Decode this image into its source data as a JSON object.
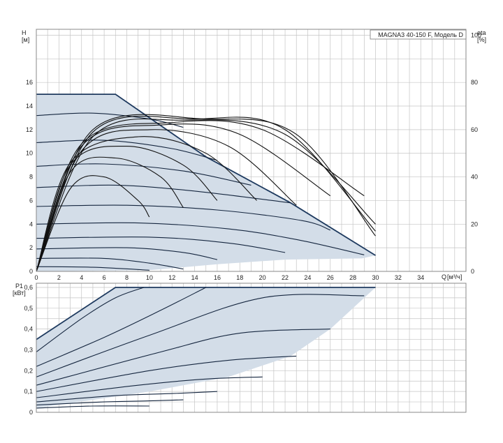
{
  "title": "MAGNA3 40-150 F, Модель D",
  "colors": {
    "area_fill": "#d3dde8",
    "boundary": "#1e3a5f",
    "curve": "#15263f",
    "eta_curve": "#111111",
    "grid": "#c4c4c4",
    "frame": "#888888"
  },
  "chart_data": [
    {
      "type": "line",
      "name": "head",
      "ylabel": "H",
      "yunit": "[м]",
      "y2label": "eta",
      "y2unit": "[%]",
      "xlabel": "Q",
      "xunit": "[м³/ч]",
      "xlim": [
        0,
        38
      ],
      "ylim": [
        0,
        20.5
      ],
      "y2lim": [
        0,
        102.5
      ],
      "x_ticks": [
        0,
        2,
        4,
        6,
        8,
        10,
        12,
        14,
        16,
        18,
        20,
        22,
        24,
        26,
        28,
        30,
        32,
        34
      ],
      "y_ticks": [
        0,
        2,
        4,
        6,
        8,
        10,
        12,
        14,
        16
      ],
      "y2_ticks": [
        0,
        20,
        40,
        60,
        80,
        100
      ],
      "grid": true,
      "operating_area": [
        [
          0,
          15
        ],
        [
          7,
          15
        ],
        [
          15,
          9.7
        ],
        [
          22.5,
          5.8
        ],
        [
          30,
          1.35
        ],
        [
          28.8,
          1.1
        ],
        [
          22,
          1
        ],
        [
          16,
          0.6
        ],
        [
          10,
          0.1
        ],
        [
          0,
          0
        ]
      ],
      "head_curves": [
        {
          "points": [
            [
              0,
              15
            ],
            [
              7,
              15
            ],
            [
              15,
              9.7
            ],
            [
              22.5,
              5.8
            ],
            [
              30,
              1.35
            ]
          ]
        },
        {
          "points": [
            [
              0,
              13.2
            ],
            [
              5,
              13.4
            ],
            [
              10,
              12.9
            ],
            [
              13,
              12.2
            ]
          ]
        },
        {
          "points": [
            [
              0,
              10.9
            ],
            [
              6,
              11.1
            ],
            [
              12,
              10.4
            ],
            [
              16,
              9.4
            ]
          ]
        },
        {
          "points": [
            [
              0,
              8.9
            ],
            [
              6,
              9.1
            ],
            [
              13,
              8.5
            ],
            [
              19,
              7.3
            ]
          ]
        },
        {
          "points": [
            [
              0,
              7.1
            ],
            [
              7,
              7.3
            ],
            [
              14,
              6.8
            ],
            [
              22.5,
              5.8
            ]
          ]
        },
        {
          "points": [
            [
              0,
              5.5
            ],
            [
              8,
              5.6
            ],
            [
              16,
              5.2
            ],
            [
              23.5,
              4.3
            ],
            [
              26,
              3.5
            ]
          ]
        },
        {
          "points": [
            [
              0,
              4
            ],
            [
              9,
              4.1
            ],
            [
              17,
              3.6
            ],
            [
              23,
              2.7
            ],
            [
              29,
              1.4
            ]
          ]
        },
        {
          "points": [
            [
              0,
              2.8
            ],
            [
              10,
              2.9
            ],
            [
              17,
              2.4
            ],
            [
              22,
              1.6
            ]
          ]
        },
        {
          "points": [
            [
              0,
              1.9
            ],
            [
              8,
              2
            ],
            [
              13,
              1.6
            ],
            [
              16,
              1
            ]
          ]
        },
        {
          "points": [
            [
              0,
              1.1
            ],
            [
              6,
              1.1
            ],
            [
              10,
              0.7
            ],
            [
              13,
              0.2
            ]
          ]
        },
        {
          "points": [
            [
              0,
              0.4
            ],
            [
              5,
              0.35
            ],
            [
              10,
              0.1
            ]
          ]
        }
      ],
      "eta_curves": [
        {
          "points": [
            [
              0,
              0
            ],
            [
              3,
              35
            ],
            [
              6,
              40
            ],
            [
              9,
              30
            ],
            [
              10,
              23
            ]
          ]
        },
        {
          "points": [
            [
              0,
              0
            ],
            [
              3,
              42
            ],
            [
              7,
              48
            ],
            [
              11,
              40
            ],
            [
              13,
              27
            ]
          ]
        },
        {
          "points": [
            [
              0,
              0
            ],
            [
              3,
              45
            ],
            [
              8,
              53
            ],
            [
              13,
              45
            ],
            [
              16,
              30
            ]
          ]
        },
        {
          "points": [
            [
              0,
              0
            ],
            [
              3,
              46
            ],
            [
              9,
              57
            ],
            [
              15,
              50
            ],
            [
              19.5,
              30
            ]
          ]
        },
        {
          "points": [
            [
              0,
              0
            ],
            [
              4,
              51
            ],
            [
              10,
              60
            ],
            [
              17,
              53
            ],
            [
              23,
              28
            ]
          ]
        },
        {
          "points": [
            [
              0,
              0
            ],
            [
              4,
              53
            ],
            [
              11,
              62
            ],
            [
              18,
              58
            ],
            [
              26,
              32
            ]
          ]
        },
        {
          "points": [
            [
              0,
              0
            ],
            [
              4,
              54
            ],
            [
              12,
              63
            ],
            [
              20,
              60
            ],
            [
              29,
              32
            ]
          ]
        },
        {
          "points": [
            [
              0,
              0
            ],
            [
              5,
              57
            ],
            [
              13,
              64
            ],
            [
              22,
              58
            ],
            [
              30,
              20
            ]
          ]
        },
        {
          "points": [
            [
              0,
              0
            ],
            [
              5,
              59
            ],
            [
              14,
              64.5
            ],
            [
              22,
              60
            ],
            [
              30,
              17
            ]
          ]
        },
        {
          "points": [
            [
              0,
              0
            ],
            [
              5,
              60
            ],
            [
              15,
              64.5
            ],
            [
              23,
              58
            ],
            [
              30,
              15
            ]
          ]
        }
      ]
    },
    {
      "type": "line",
      "name": "power",
      "ylabel": "P1",
      "yunit": "[кВт]",
      "xlim": [
        0,
        38
      ],
      "ylim": [
        0,
        0.62
      ],
      "y_ticks": [
        0,
        0.1,
        0.2,
        0.3,
        0.4,
        0.5,
        0.6
      ],
      "y_tick_labels": [
        "0",
        "0,1",
        "0,2",
        "0,3",
        "0,4",
        "0,5",
        "0,6"
      ],
      "grid": true,
      "operating_area": [
        [
          0,
          0.35
        ],
        [
          7,
          0.6
        ],
        [
          30,
          0.6
        ],
        [
          26,
          0.4
        ],
        [
          22.5,
          0.27
        ],
        [
          17,
          0.17
        ],
        [
          10,
          0.1
        ],
        [
          0,
          0.02
        ]
      ],
      "power_curves": [
        {
          "points": [
            [
              0,
              0.35
            ],
            [
              7,
              0.6
            ],
            [
              30,
              0.6
            ]
          ]
        },
        {
          "points": [
            [
              0,
              0.29
            ],
            [
              4,
              0.45
            ],
            [
              7,
              0.55
            ],
            [
              9.5,
              0.6
            ]
          ]
        },
        {
          "points": [
            [
              0,
              0.22
            ],
            [
              6,
              0.36
            ],
            [
              11,
              0.49
            ],
            [
              15,
              0.6
            ]
          ]
        },
        {
          "points": [
            [
              0,
              0.17
            ],
            [
              10,
              0.37
            ],
            [
              20,
              0.55
            ],
            [
              29,
              0.56
            ]
          ]
        },
        {
          "points": [
            [
              0,
              0.13
            ],
            [
              11,
              0.29
            ],
            [
              18,
              0.38
            ],
            [
              26,
              0.4
            ]
          ]
        },
        {
          "points": [
            [
              0,
              0.1
            ],
            [
              10,
              0.2
            ],
            [
              17,
              0.25
            ],
            [
              23,
              0.27
            ]
          ]
        },
        {
          "points": [
            [
              0,
              0.07
            ],
            [
              9,
              0.13
            ],
            [
              15,
              0.16
            ],
            [
              20,
              0.17
            ]
          ]
        },
        {
          "points": [
            [
              0,
              0.05
            ],
            [
              7,
              0.08
            ],
            [
              12,
              0.09
            ],
            [
              16,
              0.1
            ]
          ]
        },
        {
          "points": [
            [
              0,
              0.035
            ],
            [
              6,
              0.05
            ],
            [
              10,
              0.055
            ],
            [
              13,
              0.06
            ]
          ]
        },
        {
          "points": [
            [
              0,
              0.02
            ],
            [
              5,
              0.03
            ],
            [
              10,
              0.03
            ]
          ]
        }
      ]
    }
  ]
}
